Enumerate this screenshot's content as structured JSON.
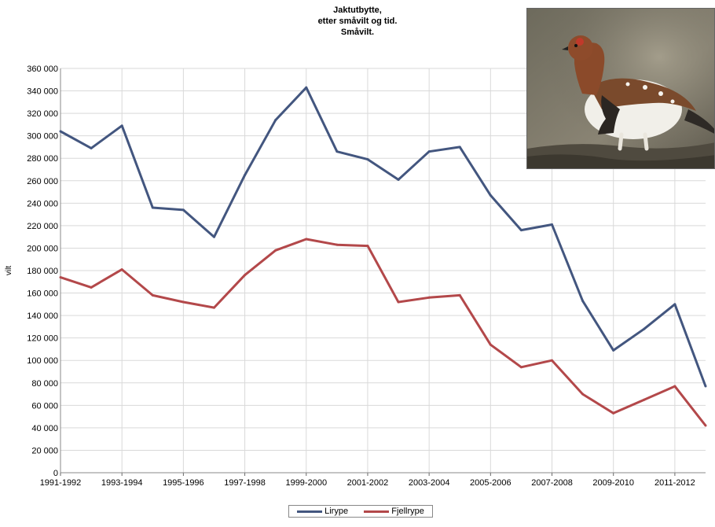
{
  "chart_data": {
    "type": "line",
    "title": [
      "Jaktutbytte,",
      "etter småvilt og tid.",
      "Småvilt."
    ],
    "ylabel": "vilt",
    "xlabel": "",
    "ylim": [
      0,
      360000
    ],
    "yticks": [
      0,
      20000,
      40000,
      60000,
      80000,
      100000,
      120000,
      140000,
      160000,
      180000,
      200000,
      220000,
      240000,
      260000,
      280000,
      300000,
      320000,
      340000,
      360000
    ],
    "ytick_labels": [
      "0",
      "20 000",
      "40 000",
      "60 000",
      "80 000",
      "100 000",
      "120 000",
      "140 000",
      "160 000",
      "180 000",
      "200 000",
      "220 000",
      "240 000",
      "260 000",
      "280 000",
      "300 000",
      "320 000",
      "340 000",
      "360 000"
    ],
    "categories": [
      "1991-1992",
      "1992-1993",
      "1993-1994",
      "1994-1995",
      "1995-1996",
      "1996-1997",
      "1997-1998",
      "1998-1999",
      "1999-2000",
      "2000-2001",
      "2001-2002",
      "2002-2003",
      "2003-2004",
      "2004-2005",
      "2005-2006",
      "2006-2007",
      "2007-2008",
      "2008-2009",
      "2009-2010",
      "2010-2011",
      "2011-2012",
      "2012-2013"
    ],
    "xtick_labels": [
      "1991-1992",
      "1993-1994",
      "1995-1996",
      "1997-1998",
      "1999-2000",
      "2001-2002",
      "2003-2004",
      "2005-2006",
      "2007-2008",
      "2009-2010",
      "2011-2012"
    ],
    "grid": true,
    "legend_position": "bottom",
    "series": [
      {
        "name": "Lirype",
        "color": "#43567f",
        "values": [
          304000,
          289000,
          309000,
          236000,
          234000,
          210000,
          265000,
          314000,
          343000,
          286000,
          279000,
          261000,
          286000,
          290000,
          247000,
          216000,
          221000,
          153000,
          109000,
          128000,
          150000,
          77000
        ]
      },
      {
        "name": "Fjellrype",
        "color": "#b3484a",
        "values": [
          174000,
          165000,
          181000,
          158000,
          152000,
          147000,
          176000,
          198000,
          208000,
          203000,
          202000,
          152000,
          156000,
          158000,
          114000,
          94000,
          100000,
          70000,
          53000,
          65000,
          77000,
          42000
        ]
      }
    ]
  },
  "photo": {
    "icon": "willow-ptarmigan-photo"
  }
}
